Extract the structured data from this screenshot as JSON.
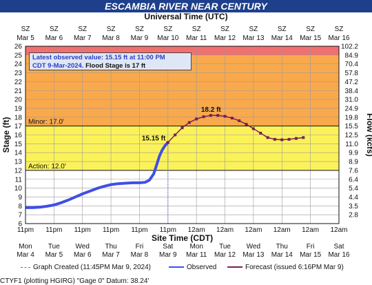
{
  "header": {
    "title": "ESCAMBIA RIVER NEAR CENTURY",
    "top_axis_label": "Universal Time (UTC)",
    "bottom_axis_label": "Site Time (CDT)"
  },
  "chart_data": {
    "type": "line",
    "ylabel": "Stage (ft)",
    "y2label": "Flow (kcfs)",
    "ylim": [
      6,
      26
    ],
    "yticks": [
      6,
      7,
      8,
      9,
      10,
      11,
      12,
      13,
      14,
      15,
      16,
      17,
      18,
      19,
      20,
      21,
      22,
      23,
      24,
      25,
      26
    ],
    "flow_ticks": [
      {
        "stage": 7,
        "label": "2.8"
      },
      {
        "stage": 8,
        "label": "3.5"
      },
      {
        "stage": 9,
        "label": "4.4"
      },
      {
        "stage": 10,
        "label": "5.4"
      },
      {
        "stage": 11,
        "label": "6.4"
      },
      {
        "stage": 12,
        "label": "7.6"
      },
      {
        "stage": 13,
        "label": "8.9"
      },
      {
        "stage": 14,
        "label": "9.9"
      },
      {
        "stage": 15,
        "label": "11.0"
      },
      {
        "stage": 16,
        "label": "12.5"
      },
      {
        "stage": 17,
        "label": "15.5"
      },
      {
        "stage": 18,
        "label": "19.8"
      },
      {
        "stage": 19,
        "label": "24.9"
      },
      {
        "stage": 20,
        "label": "31.0"
      },
      {
        "stage": 21,
        "label": "38.4"
      },
      {
        "stage": 22,
        "label": "47.2"
      },
      {
        "stage": 23,
        "label": "57.8"
      },
      {
        "stage": 24,
        "label": "70.4"
      },
      {
        "stage": 25,
        "label": "84.9"
      },
      {
        "stage": 26,
        "label": "102.2"
      }
    ],
    "x_top_ticks": [
      {
        "label": "SZ",
        "date": "Mar 5"
      },
      {
        "label": "SZ",
        "date": "Mar 6"
      },
      {
        "label": "SZ",
        "date": "Mar 7"
      },
      {
        "label": "SZ",
        "date": "Mar 8"
      },
      {
        "label": "SZ",
        "date": "Mar 9"
      },
      {
        "label": "SZ",
        "date": "Mar 10"
      },
      {
        "label": "SZ",
        "date": "Mar 11"
      },
      {
        "label": "SZ",
        "date": "Mar 12"
      },
      {
        "label": "SZ",
        "date": "Mar 13"
      },
      {
        "label": "SZ",
        "date": "Mar 14"
      },
      {
        "label": "SZ",
        "date": "Mar 15"
      },
      {
        "label": "SZ",
        "date": "Mar 16"
      }
    ],
    "x_bottom_ticks": [
      {
        "time": "11pm",
        "day": "Mon",
        "date": "Mar 4"
      },
      {
        "time": "11pm",
        "day": "Tue",
        "date": "Mar 5"
      },
      {
        "time": "11pm",
        "day": "Wed",
        "date": "Mar 6"
      },
      {
        "time": "11pm",
        "day": "Thu",
        "date": "Mar 7"
      },
      {
        "time": "11pm",
        "day": "Fri",
        "date": "Mar 8"
      },
      {
        "time": "11pm",
        "day": "Sat",
        "date": "Mar 9"
      },
      {
        "time": "12am",
        "day": "Mon",
        "date": "Mar 11"
      },
      {
        "time": "12am",
        "day": "Tue",
        "date": "Mar 12"
      },
      {
        "time": "12am",
        "day": "Wed",
        "date": "Mar 13"
      },
      {
        "time": "12am",
        "day": "Thu",
        "date": "Mar 14"
      },
      {
        "time": "12am",
        "day": "Fri",
        "date": "Mar 15"
      },
      {
        "time": "12am",
        "day": "Sat",
        "date": "Mar 16"
      }
    ],
    "bands": [
      {
        "from": 25,
        "to": 26,
        "color": "#f07070"
      },
      {
        "from": 17,
        "to": 25,
        "color": "#f9a94c"
      },
      {
        "from": 12,
        "to": 17,
        "color": "#fbf25a"
      },
      {
        "from": 6,
        "to": 12,
        "color": "#ffffff"
      }
    ],
    "thresholds": [
      {
        "label": "Minor: 17.0'",
        "value": 17
      },
      {
        "label": "Action: 12.0'",
        "value": 12
      }
    ],
    "series": [
      {
        "name": "Observed",
        "color": "#3f4ee8",
        "points": [
          [
            0,
            7.8
          ],
          [
            0.25,
            7.8
          ],
          [
            0.5,
            7.85
          ],
          [
            0.75,
            7.95
          ],
          [
            1.0,
            8.1
          ],
          [
            1.25,
            8.35
          ],
          [
            1.5,
            8.65
          ],
          [
            1.75,
            9.0
          ],
          [
            2.0,
            9.35
          ],
          [
            2.25,
            9.65
          ],
          [
            2.5,
            9.95
          ],
          [
            2.75,
            10.2
          ],
          [
            3.0,
            10.4
          ],
          [
            3.25,
            10.5
          ],
          [
            3.5,
            10.55
          ],
          [
            3.75,
            10.6
          ],
          [
            4.0,
            10.6
          ],
          [
            4.2,
            10.65
          ],
          [
            4.35,
            10.9
          ],
          [
            4.5,
            11.6
          ],
          [
            4.6,
            12.6
          ],
          [
            4.7,
            13.6
          ],
          [
            4.8,
            14.3
          ],
          [
            4.9,
            14.8
          ],
          [
            5.0,
            15.15
          ]
        ]
      },
      {
        "name": "Forecast (issued 6:16PM Mar 9)",
        "color": "#7a1f55",
        "points": [
          [
            5.0,
            15.15
          ],
          [
            5.25,
            16.0
          ],
          [
            5.5,
            16.8
          ],
          [
            5.75,
            17.4
          ],
          [
            6.0,
            17.8
          ],
          [
            6.25,
            18.05
          ],
          [
            6.5,
            18.2
          ],
          [
            6.75,
            18.2
          ],
          [
            7.0,
            18.1
          ],
          [
            7.25,
            17.9
          ],
          [
            7.5,
            17.6
          ],
          [
            7.75,
            17.2
          ],
          [
            8.0,
            16.7
          ],
          [
            8.25,
            16.2
          ],
          [
            8.5,
            15.7
          ],
          [
            8.75,
            15.5
          ],
          [
            9.0,
            15.45
          ],
          [
            9.25,
            15.5
          ],
          [
            9.5,
            15.6
          ],
          [
            9.75,
            15.7
          ]
        ]
      }
    ],
    "annotations": [
      {
        "text": "15.15 ft",
        "x": 5.0,
        "y": 15.15
      },
      {
        "text": "18.2 ft",
        "x": 6.5,
        "y": 18.2
      }
    ],
    "grid": true
  },
  "infobox": {
    "line1": "Latest observed value: 15.15 ft at 11:00 PM",
    "line2": "CDT 9-Mar-2024.",
    "line2_bold": "Flood Stage is 17 ft"
  },
  "legend": {
    "created": "Graph Created (11:45PM Mar 9, 2024)",
    "observed": "Observed",
    "forecast": "Forecast (issued 6:16PM Mar 9)"
  },
  "footer": {
    "text": "CTYF1 (plotting HGIRG) \"Gage 0\" Datum: 38.24'"
  },
  "colors": {
    "title_bg": "#1d3f8c",
    "observed": "#3f4ee8",
    "forecast": "#7a1f55",
    "created_line": "#5a6fd8"
  }
}
